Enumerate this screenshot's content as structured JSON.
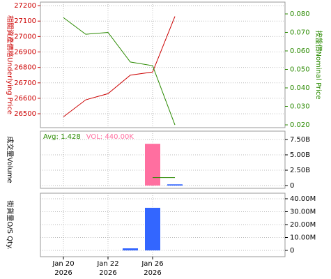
{
  "chart_data": [
    {
      "type": "line",
      "ylabel": "相關資產價格Underlying Price",
      "y2label": "按盤價Nominal Price",
      "ylim": [
        26410,
        27223
      ],
      "yticks": [
        26500,
        26600,
        26700,
        26800,
        26900,
        27000,
        27100,
        27200
      ],
      "y2lim": [
        0.0185,
        0.0864
      ],
      "y2ticks": [
        {
          "value": 0.02,
          "label": "0.020"
        },
        {
          "value": 0.03,
          "label": "0.030"
        },
        {
          "value": 0.04,
          "label": "0.040"
        },
        {
          "value": 0.05,
          "label": "0.050"
        },
        {
          "value": 0.06,
          "label": "0.060"
        },
        {
          "value": 0.07,
          "label": "0.070"
        },
        {
          "value": 0.08,
          "label": "0.080"
        }
      ],
      "grid": true,
      "series": [
        {
          "color": "#cc0000",
          "values": [
            26480,
            26590,
            26630,
            26750,
            26770,
            27130
          ]
        },
        {
          "color": "#2a8a00",
          "axis": "y2",
          "values": [
            0.078,
            0.069,
            0.07,
            0.054,
            0.052,
            0.02
          ]
        }
      ]
    },
    {
      "type": "bar",
      "ylabel": "成交量Volume",
      "legend": [
        {
          "text": "Avg: 1.428",
          "color": "#2a8a00"
        },
        {
          "text": "VOL: 440.00K",
          "color": "#ff6fa0"
        }
      ],
      "ylim": [
        -450000000,
        8860000000
      ],
      "yticks": [
        0,
        {
          "value": 2500000000,
          "label": "2.50B"
        },
        {
          "value": 5000000000,
          "label": "5.00B"
        },
        {
          "value": 7500000000,
          "label": "7.50B"
        }
      ],
      "grid": true,
      "series": [
        {
          "color": "#ff6fa0",
          "values": [
            null,
            null,
            null,
            null,
            6800000000,
            null
          ]
        },
        {
          "color": "#3366ff",
          "values": [
            null,
            null,
            null,
            null,
            null,
            200000000
          ]
        },
        {
          "color": "#2a8a00",
          "style": "line",
          "values": [
            null,
            null,
            null,
            null,
            1300000000,
            1300000000
          ]
        }
      ]
    },
    {
      "type": "bar",
      "ylabel": "街貨量O/S Qty.",
      "ylim": [
        -4860000,
        44300000
      ],
      "yticks": [
        0,
        {
          "value": 10000000,
          "label": "10.00M"
        },
        {
          "value": 20000000,
          "label": "20.00M"
        },
        {
          "value": 30000000,
          "label": "30.00M"
        },
        {
          "value": 40000000,
          "label": "40.00M"
        }
      ],
      "grid": true,
      "categories": [
        "Jan 20",
        null,
        "Jan 22",
        null,
        "Jan 26",
        null
      ],
      "category_years": [
        "2026",
        null,
        "2026",
        null,
        "2026",
        null
      ],
      "series": [
        {
          "color": "#3366ff",
          "values": [
            null,
            null,
            null,
            1600000,
            33000000,
            null
          ]
        }
      ]
    }
  ]
}
